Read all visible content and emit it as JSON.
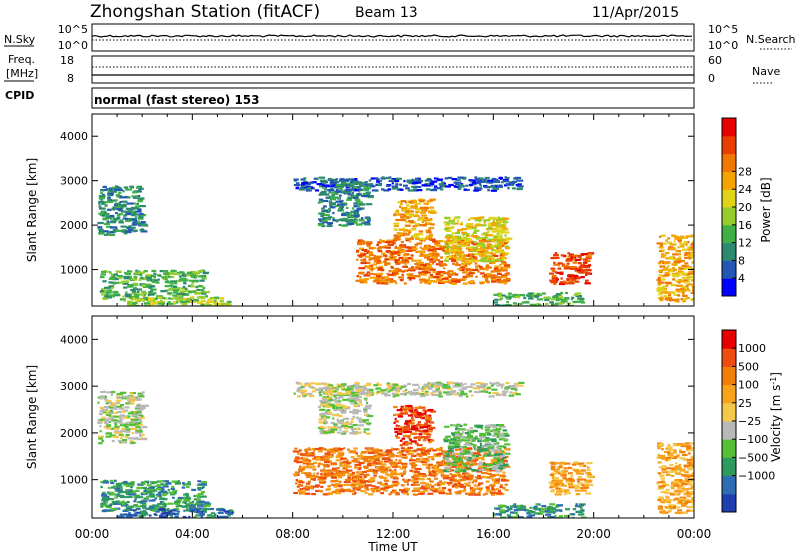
{
  "header": {
    "station_title": "Zhongshan Station (fitACF)",
    "beam_label": "Beam 13",
    "date": "11/Apr/2015"
  },
  "panels": {
    "nsky": {
      "label": "N.Sky",
      "left_ticks": [
        "10^5",
        "10^0"
      ],
      "right_label": "N.Search",
      "right_ticks": [
        "10^5",
        "10^0"
      ]
    },
    "freq": {
      "label_line1": "Freq.",
      "label_line2": "[MHz]",
      "left_ticks": [
        "18",
        "8"
      ],
      "right_label": "Nave",
      "right_ticks": [
        "60",
        "0"
      ]
    },
    "cpid": {
      "label": "CPID",
      "mode_text": "normal (fast stereo) 153"
    }
  },
  "chart_data": [
    {
      "type": "heatmap",
      "name": "power",
      "ylabel": "Slant Range [km]",
      "xlabel": "",
      "x_ticks": [
        "00:00",
        "04:00",
        "08:00",
        "12:00",
        "16:00",
        "20:00",
        "00:00"
      ],
      "y_ticks": [
        1000,
        2000,
        3000,
        4000
      ],
      "ylim": [
        180,
        4500
      ],
      "xlim_hours": [
        0,
        24
      ],
      "colorbar": {
        "label": "Power [dB]",
        "ticks": [
          "4",
          "8",
          "12",
          "16",
          "20",
          "24",
          "28"
        ],
        "colors": [
          "#0000ff",
          "#2457b4",
          "#2c8a70",
          "#3fb046",
          "#96cd2b",
          "#e1d31b",
          "#f5a300",
          "#f07700",
          "#ea3d00",
          "#e60000"
        ]
      },
      "regions": [
        {
          "t0": 0.2,
          "t1": 2.0,
          "r0": 1800,
          "r1": 2900,
          "level": 2
        },
        {
          "t0": 0.3,
          "t1": 4.5,
          "r0": 350,
          "r1": 1000,
          "level": 3
        },
        {
          "t0": 1.0,
          "t1": 5.5,
          "r0": 180,
          "r1": 400,
          "level": 4
        },
        {
          "t0": 8.0,
          "t1": 17.0,
          "r0": 2800,
          "r1": 3100,
          "level": 1
        },
        {
          "t0": 9.0,
          "t1": 11.0,
          "r0": 2000,
          "r1": 3000,
          "level": 2
        },
        {
          "t0": 10.5,
          "t1": 16.5,
          "r0": 700,
          "r1": 1700,
          "level": 7
        },
        {
          "t0": 12.0,
          "t1": 13.5,
          "r0": 1700,
          "r1": 2600,
          "level": 6
        },
        {
          "t0": 14.0,
          "t1": 16.5,
          "r0": 1200,
          "r1": 2200,
          "level": 5
        },
        {
          "t0": 18.2,
          "t1": 19.8,
          "r0": 700,
          "r1": 1400,
          "level": 8
        },
        {
          "t0": 16.0,
          "t1": 19.5,
          "r0": 180,
          "r1": 500,
          "level": 3
        },
        {
          "t0": 22.5,
          "t1": 24.0,
          "r0": 300,
          "r1": 1800,
          "level": 6
        }
      ]
    },
    {
      "type": "heatmap",
      "name": "velocity",
      "ylabel": "Slant Range [km]",
      "xlabel": "Time UT",
      "x_ticks": [
        "00:00",
        "04:00",
        "08:00",
        "12:00",
        "16:00",
        "20:00",
        "00:00"
      ],
      "y_ticks": [
        1000,
        2000,
        3000,
        4000
      ],
      "ylim": [
        180,
        4500
      ],
      "xlim_hours": [
        0,
        24
      ],
      "colorbar": {
        "label": "Velocity [m s^-1]",
        "ticks": [
          "1000",
          "500",
          "100",
          "25",
          "−25",
          "−100",
          "−500",
          "−1000"
        ],
        "colors": [
          "#1f3fb0",
          "#2e6db4",
          "#2f9a5d",
          "#55c037",
          "#b8b8b8",
          "#f6c84a",
          "#f7a41c",
          "#f27f0a",
          "#ee4d0f",
          "#e60000"
        ]
      },
      "regions": [
        {
          "t0": 0.2,
          "t1": 2.0,
          "r0": 1800,
          "r1": 2900,
          "level": 4
        },
        {
          "t0": 0.3,
          "t1": 4.5,
          "r0": 350,
          "r1": 1000,
          "level": 2
        },
        {
          "t0": 1.0,
          "t1": 5.5,
          "r0": 180,
          "r1": 400,
          "level": 1
        },
        {
          "t0": 8.0,
          "t1": 17.0,
          "r0": 2800,
          "r1": 3100,
          "level": 4
        },
        {
          "t0": 9.0,
          "t1": 11.0,
          "r0": 2000,
          "r1": 3000,
          "level": 4
        },
        {
          "t0": 8.0,
          "t1": 16.5,
          "r0": 700,
          "r1": 1700,
          "level": 7
        },
        {
          "t0": 12.0,
          "t1": 13.5,
          "r0": 1700,
          "r1": 2600,
          "level": 8
        },
        {
          "t0": 14.0,
          "t1": 16.5,
          "r0": 1200,
          "r1": 2200,
          "level": 3
        },
        {
          "t0": 18.2,
          "t1": 19.8,
          "r0": 700,
          "r1": 1400,
          "level": 6
        },
        {
          "t0": 16.0,
          "t1": 19.5,
          "r0": 180,
          "r1": 500,
          "level": 2
        },
        {
          "t0": 22.5,
          "t1": 24.0,
          "r0": 300,
          "r1": 1800,
          "level": 6
        }
      ]
    }
  ]
}
